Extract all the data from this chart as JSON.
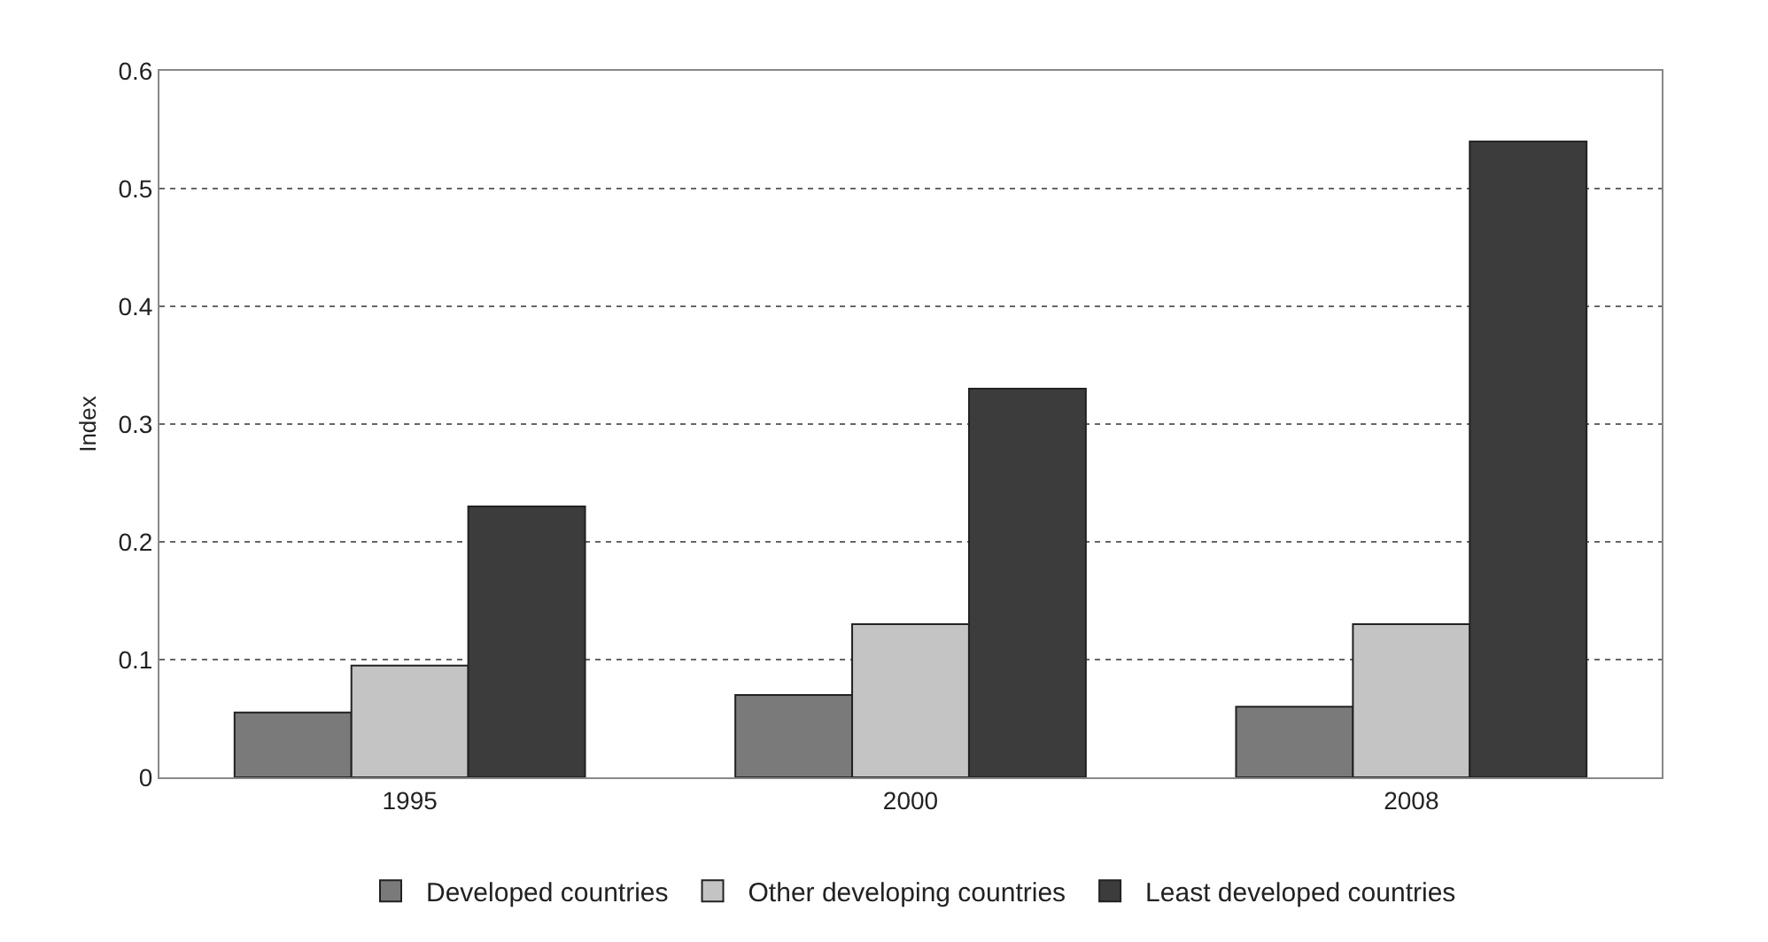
{
  "chart_data": {
    "type": "bar",
    "ylabel": "Index",
    "categories": [
      "1995",
      "2000",
      "2008"
    ],
    "series": [
      {
        "name": "Developed countries",
        "color": "#7a7a7a",
        "values": [
          0.055,
          0.07,
          0.06
        ]
      },
      {
        "name": "Other developing countries",
        "color": "#c4c4c4",
        "values": [
          0.095,
          0.13,
          0.13
        ]
      },
      {
        "name": "Least developed countries",
        "color": "#3c3c3c",
        "values": [
          0.23,
          0.33,
          0.54
        ]
      }
    ],
    "ylim": [
      0,
      0.6
    ],
    "yticks": [
      {
        "value": 0,
        "label": "0"
      },
      {
        "value": 0.1,
        "label": "0.1"
      },
      {
        "value": 0.2,
        "label": "0.2"
      },
      {
        "value": 0.3,
        "label": "0.3"
      },
      {
        "value": 0.4,
        "label": "0.4"
      },
      {
        "value": 0.5,
        "label": "0.5"
      },
      {
        "value": 0.6,
        "label": "0.6"
      }
    ],
    "grid": "y",
    "legend": "bottom"
  }
}
